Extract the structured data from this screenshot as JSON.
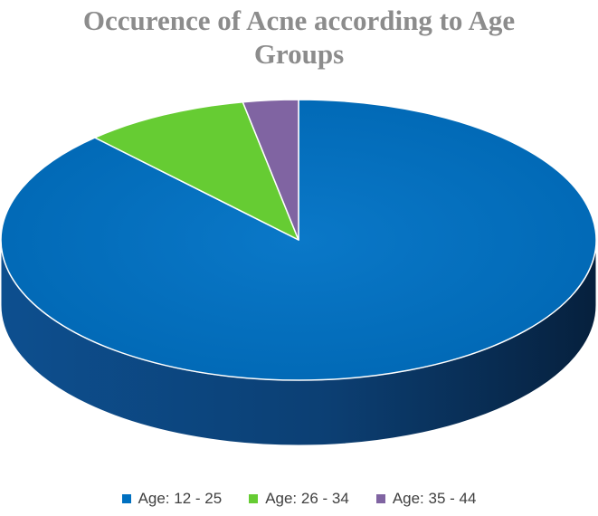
{
  "chart_data": {
    "type": "pie",
    "title_line1": "Occurence of Acne according to Age",
    "title_line2": "Groups",
    "categories": [
      "Age: 12 - 25",
      "Age: 26 - 34",
      "Age: 35 - 44"
    ],
    "values": [
      88,
      9,
      3
    ],
    "colors": [
      "#0070c0",
      "#66cc33",
      "#8064a2"
    ],
    "side_colors": [
      "#0f4a85",
      "#3e7a1f",
      "#4e3b66"
    ],
    "legend_position": "bottom",
    "three_d": true
  }
}
